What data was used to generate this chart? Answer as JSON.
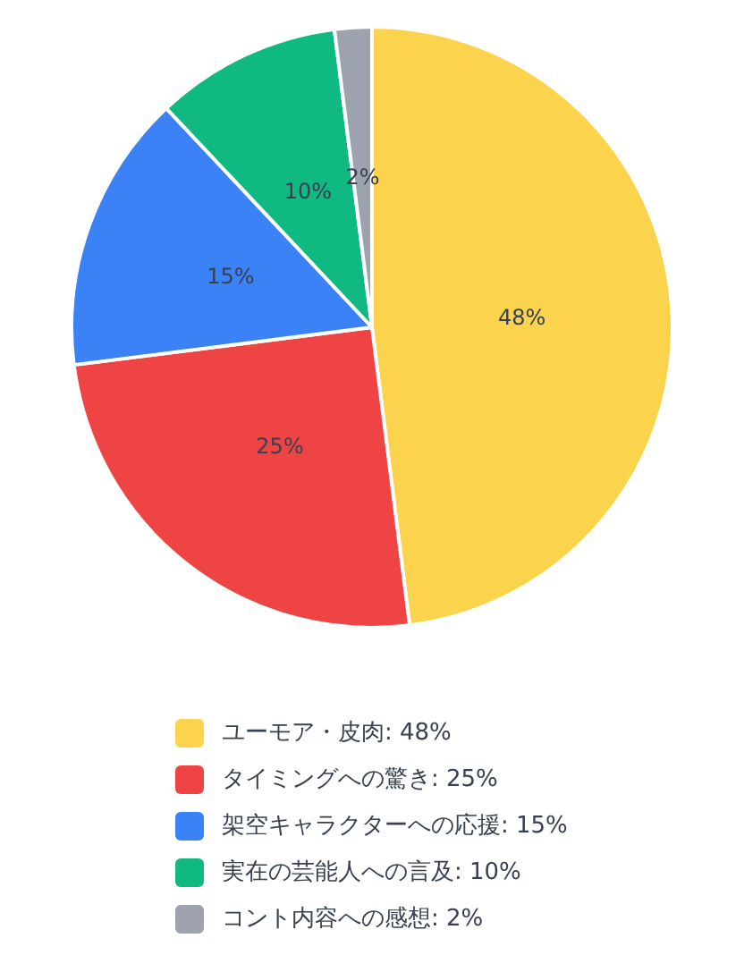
{
  "chart_data": {
    "type": "pie",
    "categories": [
      "ユーモア・皮肉",
      "タイミングへの驚き",
      "架空キャラクターへの応援",
      "実在の芸能人への言及",
      "コント内容への感想"
    ],
    "values": [
      48,
      25,
      15,
      10,
      2
    ],
    "colors": [
      "#fcd34d",
      "#ef4444",
      "#3b82f6",
      "#10b981",
      "#9ca3af"
    ],
    "value_labels": [
      "48%",
      "25%",
      "15%",
      "10%",
      "2%"
    ],
    "legend": "bottom"
  }
}
